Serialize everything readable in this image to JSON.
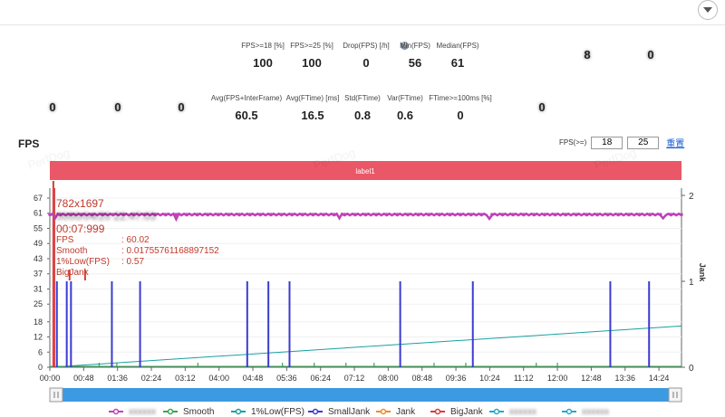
{
  "row1": [
    {
      "header": "",
      "value": "",
      "blurred": true
    },
    {
      "header": "",
      "value": "",
      "blurred": true
    },
    {
      "header": "",
      "value": "",
      "blurred": true
    },
    {
      "header": "",
      "value": "",
      "blurred": true
    },
    {
      "header": "FPS>=18 [%]",
      "value": "100"
    },
    {
      "header": "FPS>=25 [%]",
      "value": "100"
    },
    {
      "header": "Drop(FPS) [/h]",
      "value": "0",
      "help": true
    },
    {
      "header": "Min(FPS)",
      "value": "56"
    },
    {
      "header": "Median(FPS)",
      "value": "61"
    },
    {
      "header": "",
      "value": "",
      "blurred": true
    },
    {
      "header": "",
      "value": "8",
      "blurred": true
    },
    {
      "header": "",
      "value": "0",
      "blurred": true
    }
  ],
  "row2": [
    {
      "header": "",
      "value": "0",
      "blurred": true
    },
    {
      "header": "",
      "value": "0",
      "blurred": true
    },
    {
      "header": "",
      "value": "0",
      "blurred": true
    },
    {
      "header": "Avg(FPS+InterFrame)",
      "value": "60.5"
    },
    {
      "header": "Avg(FTime) [ms]",
      "value": "16.5"
    },
    {
      "header": "Std(FTime)",
      "value": "0.8"
    },
    {
      "header": "Var(FTime)",
      "value": "0.6"
    },
    {
      "header": "FTime>=100ms [%]",
      "value": "0"
    },
    {
      "header": "",
      "value": "0",
      "blurred": true
    }
  ],
  "fps_section": {
    "title": "FPS",
    "filter_label": "FPS(>=)",
    "threshold_low": "18",
    "threshold_high": "25",
    "reset_label": "重置"
  },
  "label_bar": "label1",
  "tooltip": {
    "resolution": "782x1697",
    "timestamp": "00:07:999",
    "rows": [
      {
        "name": "FPS",
        "value": ": 60.02"
      },
      {
        "name": "Smooth",
        "value": ": 0.01755761168897152"
      },
      {
        "name": "1%Low(FPS)",
        "value": ": 0.57"
      },
      {
        "name": "BigJank",
        "value": ""
      }
    ]
  },
  "watermark": "PerfDog",
  "colors": {
    "fps": "#c041b8",
    "smooth": "#33a852",
    "low1pct": "#18a0a0",
    "smalljank": "#3b3bd4",
    "jank": "#f08a24",
    "bigjank": "#d93a3a",
    "label_bar": "#ea5766",
    "scrollbar": "#3b9ae1"
  },
  "chart_data": {
    "type": "line",
    "title": "FPS",
    "y_left": {
      "label": "",
      "ticks": [
        "67",
        "61",
        "55",
        "49",
        "43",
        "37",
        "31",
        "25",
        "18",
        "12",
        "6",
        "0"
      ],
      "range": [
        0,
        67
      ]
    },
    "y_right": {
      "label": "Jank",
      "ticks": [
        "2",
        "1",
        "0"
      ],
      "range": [
        0,
        2
      ]
    },
    "x_ticks": [
      "00:00",
      "00:48",
      "01:36",
      "02:24",
      "03:12",
      "04:00",
      "04:48",
      "05:36",
      "06:24",
      "07:12",
      "08:00",
      "08:48",
      "09:36",
      "10:24",
      "11:12",
      "12:00",
      "12:48",
      "13:36",
      "14:24"
    ],
    "x_range_seconds": [
      0,
      896
    ],
    "series": [
      {
        "name": "",
        "key": "fps",
        "legend_blurred": true,
        "base": 60.5,
        "dips": [
          {
            "x": 8,
            "y": 59
          },
          {
            "x": 180,
            "y": 58.6
          },
          {
            "x": 410,
            "y": 59
          },
          {
            "x": 625,
            "y": 58.8
          },
          {
            "x": 870,
            "y": 59
          }
        ]
      },
      {
        "name": "Smooth",
        "key": "smooth",
        "points": [
          {
            "x": 0,
            "y": 0
          },
          {
            "x": 896,
            "y": 0
          }
        ]
      },
      {
        "name": "1%Low(FPS)",
        "key": "low1pct",
        "points": [
          {
            "x": 0,
            "y": 0
          },
          {
            "x": 896,
            "y": 0.48
          }
        ]
      },
      {
        "name": "SmallJank",
        "key": "smalljank",
        "spikes_x": [
          10,
          24,
          30,
          88,
          128,
          280,
          310,
          340,
          497,
          600,
          795,
          850
        ]
      },
      {
        "name": "Jank",
        "key": "jank",
        "points": []
      },
      {
        "name": "BigJank",
        "key": "bigjank",
        "spikes_x": [
          5
        ]
      }
    ],
    "extra_legend_blurred": [
      "",
      ""
    ]
  }
}
